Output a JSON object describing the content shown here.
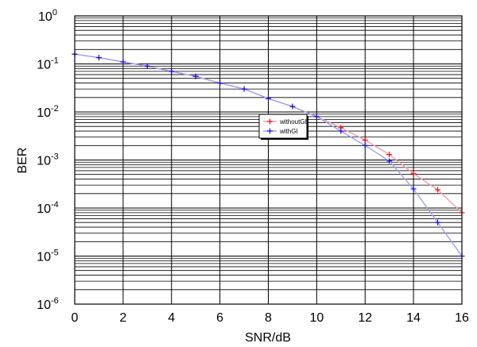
{
  "chart_data": {
    "type": "line",
    "xlabel": "SNR/dB",
    "ylabel": "BER",
    "xlim": [
      0,
      16
    ],
    "ylim": [
      1e-06,
      1
    ],
    "yscale": "log",
    "grid": true,
    "legend_position": "center-right",
    "x_ticks": [
      0,
      2,
      4,
      6,
      8,
      10,
      12,
      14,
      16
    ],
    "y_ticks": [
      {
        "base": "10",
        "exp": "0"
      },
      {
        "base": "10",
        "exp": "-1"
      },
      {
        "base": "10",
        "exp": "-2"
      },
      {
        "base": "10",
        "exp": "-3"
      },
      {
        "base": "10",
        "exp": "-4"
      },
      {
        "base": "10",
        "exp": "-5"
      },
      {
        "base": "10",
        "exp": "-6"
      }
    ],
    "series": [
      {
        "name": "withoutGI",
        "color": "#ff0000",
        "line_color": "#f0a0b0",
        "x": [
          0,
          1,
          2,
          3,
          4,
          5,
          6,
          7,
          8,
          9,
          10,
          11,
          12,
          13,
          14,
          15,
          16
        ],
        "y": [
          0.16,
          0.135,
          0.11,
          0.09,
          0.07,
          0.055,
          0.04,
          0.03,
          0.019,
          0.013,
          0.008,
          0.0047,
          0.0026,
          0.0013,
          0.00052,
          0.00024,
          8e-05
        ]
      },
      {
        "name": "withGI",
        "color": "#0000ff",
        "line_color": "#a0a0f0",
        "x": [
          0,
          1,
          2,
          3,
          4,
          5,
          6,
          7,
          8,
          9,
          10,
          11,
          12,
          13,
          14,
          15,
          16
        ],
        "y": [
          0.16,
          0.135,
          0.11,
          0.09,
          0.07,
          0.055,
          0.04,
          0.03,
          0.019,
          0.013,
          0.008,
          0.004,
          0.002,
          0.00095,
          0.00025,
          5e-05,
          1e-05
        ]
      }
    ]
  }
}
